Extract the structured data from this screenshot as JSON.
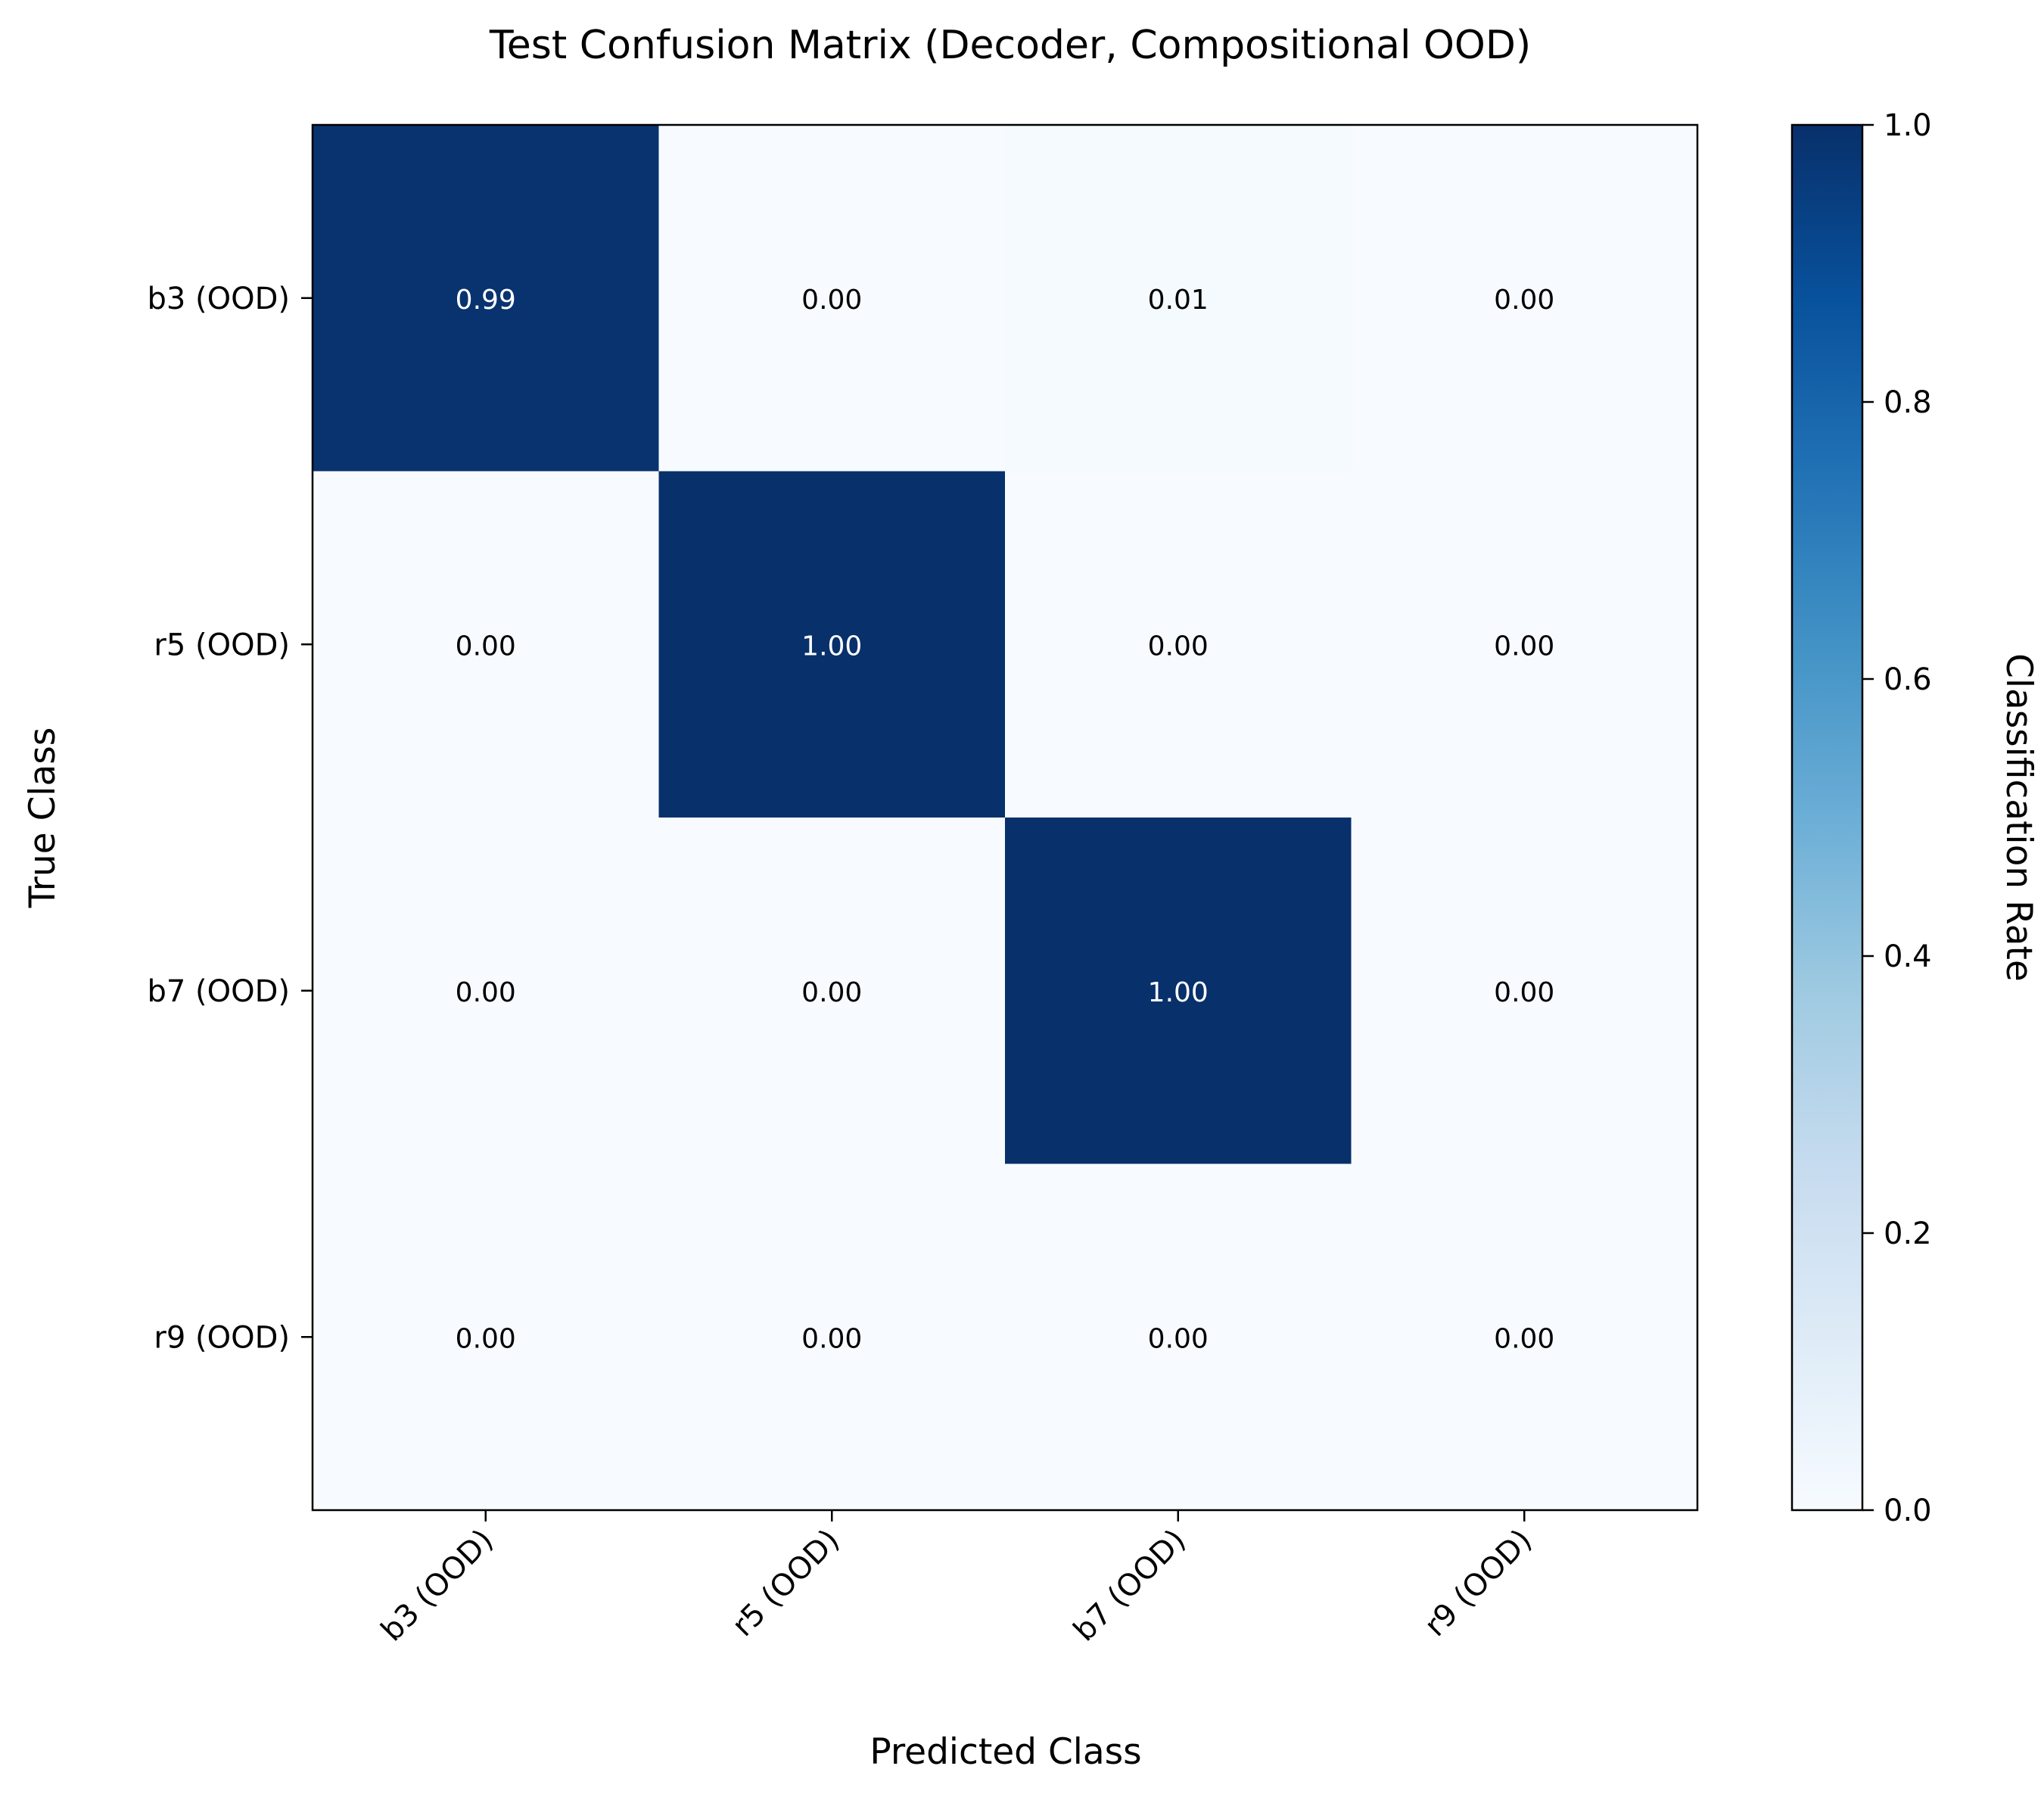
{
  "chart_data": {
    "type": "heatmap",
    "title": "Test Confusion Matrix (Decoder, Compositional OOD)",
    "xlabel": "Predicted Class",
    "ylabel": "True Class",
    "x_categories": [
      "b3 (OOD)",
      "r5 (OOD)",
      "b7 (OOD)",
      "r9 (OOD)"
    ],
    "y_categories": [
      "b3 (OOD)",
      "r5 (OOD)",
      "b7 (OOD)",
      "r9 (OOD)"
    ],
    "values": [
      [
        0.99,
        0.0,
        0.01,
        0.0
      ],
      [
        0.0,
        1.0,
        0.0,
        0.0
      ],
      [
        0.0,
        0.0,
        1.0,
        0.0
      ],
      [
        0.0,
        0.0,
        0.0,
        0.0
      ]
    ],
    "value_format": "2-decimal",
    "colormap": "Blues",
    "colorbar": {
      "label": "Classification Rate",
      "range": [
        0,
        1
      ],
      "ticks": [
        "0.0",
        "0.2",
        "0.4",
        "0.6",
        "0.8",
        "1.0"
      ],
      "tick_values": [
        0,
        0.2,
        0.4,
        0.6,
        0.8,
        1.0
      ]
    },
    "colors": {
      "low": "#f7fbff",
      "high": "#08306b",
      "text_dark_bg": "#ffffff",
      "text_light_bg": "#000000"
    }
  }
}
